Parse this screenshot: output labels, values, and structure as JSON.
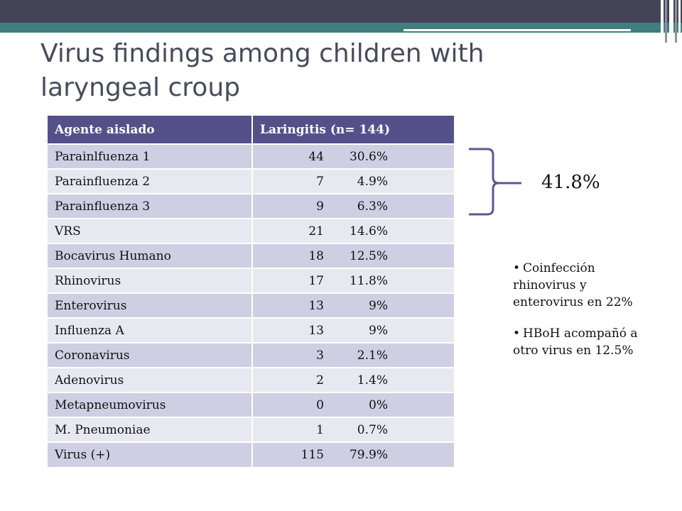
{
  "slide": {
    "title": "Virus findings among children with laryngeal croup",
    "colors": {
      "header": "#454457",
      "accent": "#3f7f7f",
      "table_header": "#53508a",
      "row_odd": "#cfcfe3",
      "row_even": "#e8e8f1"
    }
  },
  "table": {
    "headers": [
      "Agente aislado",
      "Laringitis  (n= 144)"
    ],
    "rows": [
      {
        "agent": "Parainlfuenza 1",
        "n": "44",
        "pct": "30.6%"
      },
      {
        "agent": "Parainfluenza 2",
        "n": "7",
        "pct": "4.9%"
      },
      {
        "agent": "Parainfluenza 3",
        "n": "9",
        "pct": "6.3%"
      },
      {
        "agent": "VRS",
        "n": "21",
        "pct": "14.6%"
      },
      {
        "agent": "Bocavirus Humano",
        "n": "18",
        "pct": "12.5%"
      },
      {
        "agent": "Rhinovirus",
        "n": "17",
        "pct": "11.8%"
      },
      {
        "agent": "Enterovirus",
        "n": "13",
        "pct": "9%"
      },
      {
        "agent": "Influenza A",
        "n": "13",
        "pct": "9%"
      },
      {
        "agent": "Coronavirus",
        "n": "3",
        "pct": "2.1%"
      },
      {
        "agent": "Adenovirus",
        "n": "2",
        "pct": "1.4%"
      },
      {
        "agent": "Metapneumovirus",
        "n": "0",
        "pct": "0%"
      },
      {
        "agent": "M. Pneumoniae",
        "n": "1",
        "pct": "0.7%"
      },
      {
        "agent": "Virus (+)",
        "n": "115",
        "pct": "79.9%"
      }
    ]
  },
  "brace": {
    "label": "41.8%"
  },
  "notes": [
    "Coinfección rhinovirus y enterovirus en 22%",
    "HBoH acompañó a otro virus en 12.5%"
  ]
}
